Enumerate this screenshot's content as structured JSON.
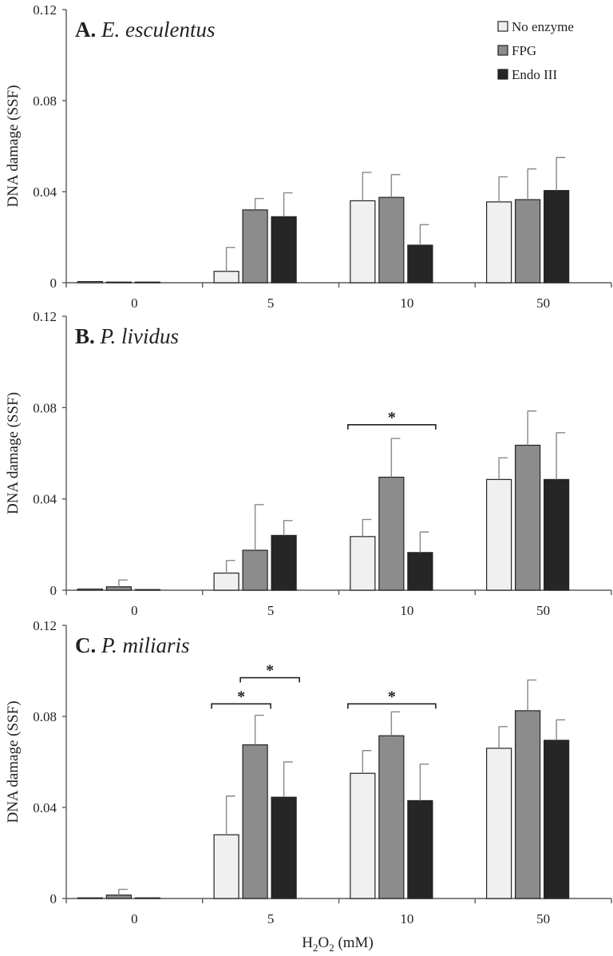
{
  "colors": {
    "No enzyme": "#f0f0f0",
    "FPG": "#8c8c8c",
    "Endo III": "#262626"
  },
  "legend": {
    "placement": "top-right",
    "entries": [
      "No enzyme",
      "FPG",
      "Endo III"
    ]
  },
  "xlabel_parts": {
    "base": "H",
    "sub": "2",
    "rest": "O",
    "sub2": "2",
    "unit": " (mM)"
  },
  "chart_data": [
    {
      "type": "bar",
      "panel_letter": "A.",
      "panel_species": "E. esculentus",
      "ylabel": "DNA damage (SSF)",
      "ylim": [
        0,
        0.12
      ],
      "yticks": [
        "0",
        "0.04",
        "0.08",
        "0.12"
      ],
      "categories": [
        "0",
        "5",
        "10",
        "50"
      ],
      "series": [
        {
          "name": "No enzyme",
          "values": [
            0.0005,
            0.005,
            0.036,
            0.0355
          ],
          "errors": [
            0.0,
            0.0105,
            0.0125,
            0.011
          ]
        },
        {
          "name": "FPG",
          "values": [
            0.0002,
            0.032,
            0.0375,
            0.0365
          ],
          "errors": [
            0.0,
            0.005,
            0.01,
            0.0135
          ]
        },
        {
          "name": "Endo III",
          "values": [
            0.0002,
            0.029,
            0.0165,
            0.0405
          ],
          "errors": [
            0.0,
            0.0105,
            0.009,
            0.0145
          ]
        }
      ],
      "significance": []
    },
    {
      "type": "bar",
      "panel_letter": "B.",
      "panel_species": "P. lividus",
      "ylabel": "DNA damage (SSF)",
      "ylim": [
        0,
        0.12
      ],
      "yticks": [
        "0",
        "0.04",
        "0.08",
        "0.12"
      ],
      "categories": [
        "0",
        "5",
        "10",
        "50"
      ],
      "series": [
        {
          "name": "No enzyme",
          "values": [
            0.0005,
            0.0075,
            0.0235,
            0.0485
          ],
          "errors": [
            0.0,
            0.0055,
            0.0075,
            0.0095
          ]
        },
        {
          "name": "FPG",
          "values": [
            0.0015,
            0.0175,
            0.0495,
            0.0635
          ],
          "errors": [
            0.003,
            0.02,
            0.017,
            0.015
          ]
        },
        {
          "name": "Endo III",
          "values": [
            0.0002,
            0.024,
            0.0165,
            0.0485
          ],
          "errors": [
            0.0,
            0.0065,
            0.009,
            0.0205
          ]
        }
      ],
      "significance": [
        {
          "group": 2,
          "from_series": 0,
          "to_series": 2,
          "y": 0.0725,
          "label": "*"
        }
      ]
    },
    {
      "type": "bar",
      "panel_letter": "C.",
      "panel_species": "P. miliaris",
      "ylabel": "DNA damage (SSF)",
      "ylim": [
        0,
        0.12
      ],
      "yticks": [
        "0",
        "0.04",
        "0.08",
        "0.12"
      ],
      "categories": [
        "0",
        "5",
        "10",
        "50"
      ],
      "series": [
        {
          "name": "No enzyme",
          "values": [
            0.0002,
            0.028,
            0.055,
            0.066
          ],
          "errors": [
            0.0,
            0.017,
            0.01,
            0.0095
          ]
        },
        {
          "name": "FPG",
          "values": [
            0.0015,
            0.0675,
            0.0715,
            0.0825
          ],
          "errors": [
            0.0025,
            0.013,
            0.0105,
            0.0135
          ]
        },
        {
          "name": "Endo III",
          "values": [
            0.0002,
            0.0445,
            0.043,
            0.0695
          ],
          "errors": [
            0.0,
            0.0155,
            0.016,
            0.009
          ]
        }
      ],
      "significance": [
        {
          "group": 1,
          "from_series": 0,
          "to_series": 1,
          "y": 0.0855,
          "label": "*"
        },
        {
          "group": 1,
          "from_series": 1,
          "to_series": 2,
          "y": 0.097,
          "label": "*"
        },
        {
          "group": 2,
          "from_series": 0,
          "to_series": 2,
          "y": 0.0855,
          "label": "*"
        }
      ]
    }
  ]
}
